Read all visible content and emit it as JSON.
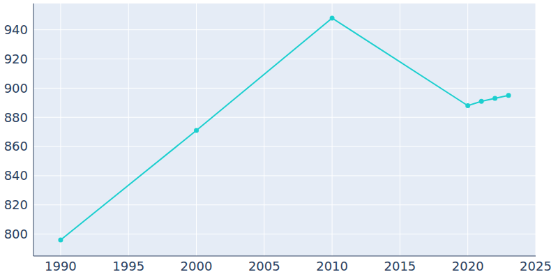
{
  "chart_data": {
    "type": "line",
    "x": [
      1990,
      2000,
      2010,
      2020,
      2021,
      2022,
      2023
    ],
    "values": [
      796,
      871,
      948,
      888,
      891,
      893,
      895
    ],
    "color": "#1ccfcf",
    "marker": "circle",
    "xlim": [
      1988,
      2025
    ],
    "xticks": [
      1990,
      1995,
      2000,
      2005,
      2010,
      2015,
      2020,
      2025
    ],
    "ylim": [
      785,
      958
    ],
    "yticks": [
      800,
      820,
      840,
      860,
      880,
      900,
      920,
      940
    ],
    "grid": true
  }
}
